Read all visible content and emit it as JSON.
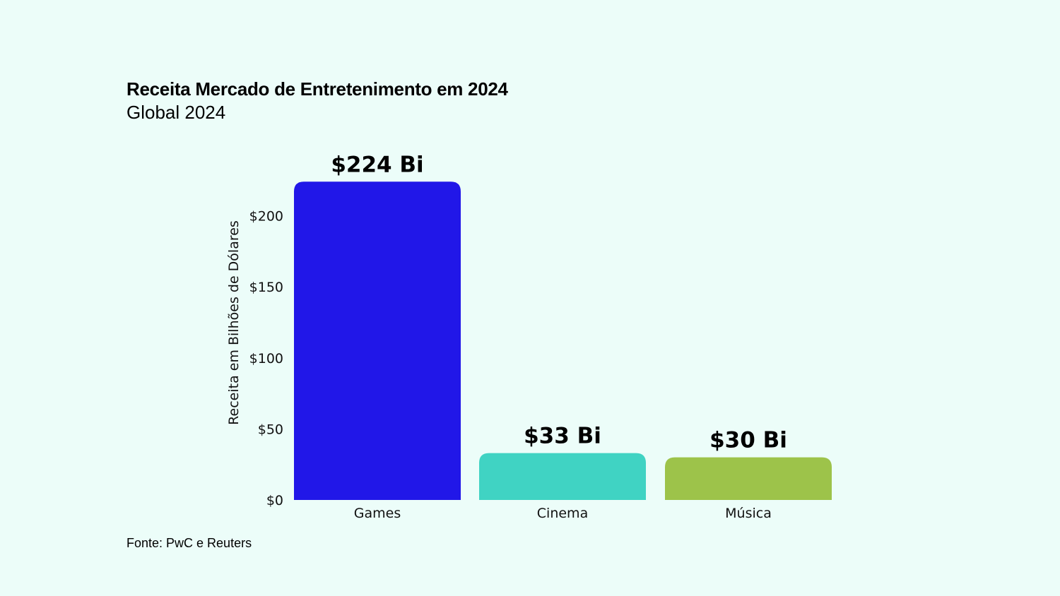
{
  "chart_data": {
    "type": "bar",
    "title": "Receita Mercado de Entretenimento em 2024",
    "subtitle": "Global 2024",
    "ylabel": "Receita em Bilhões de Dólares",
    "xlabel": "",
    "categories": [
      "Games",
      "Cinema",
      "Música"
    ],
    "values": [
      224,
      33,
      30
    ],
    "data_labels": [
      "$224 Bi",
      "$33 Bi",
      "$30 Bi"
    ],
    "colors": [
      "#2117e8",
      "#40d3c3",
      "#9dc34a"
    ],
    "ylim": [
      0,
      224
    ],
    "yticks": [
      0,
      50,
      100,
      150,
      200
    ],
    "ytick_labels": [
      "$0",
      "$50",
      "$100",
      "$150",
      "$200"
    ],
    "grid": false,
    "legend": "none"
  },
  "source": "Fonte: PwC e Reuters"
}
